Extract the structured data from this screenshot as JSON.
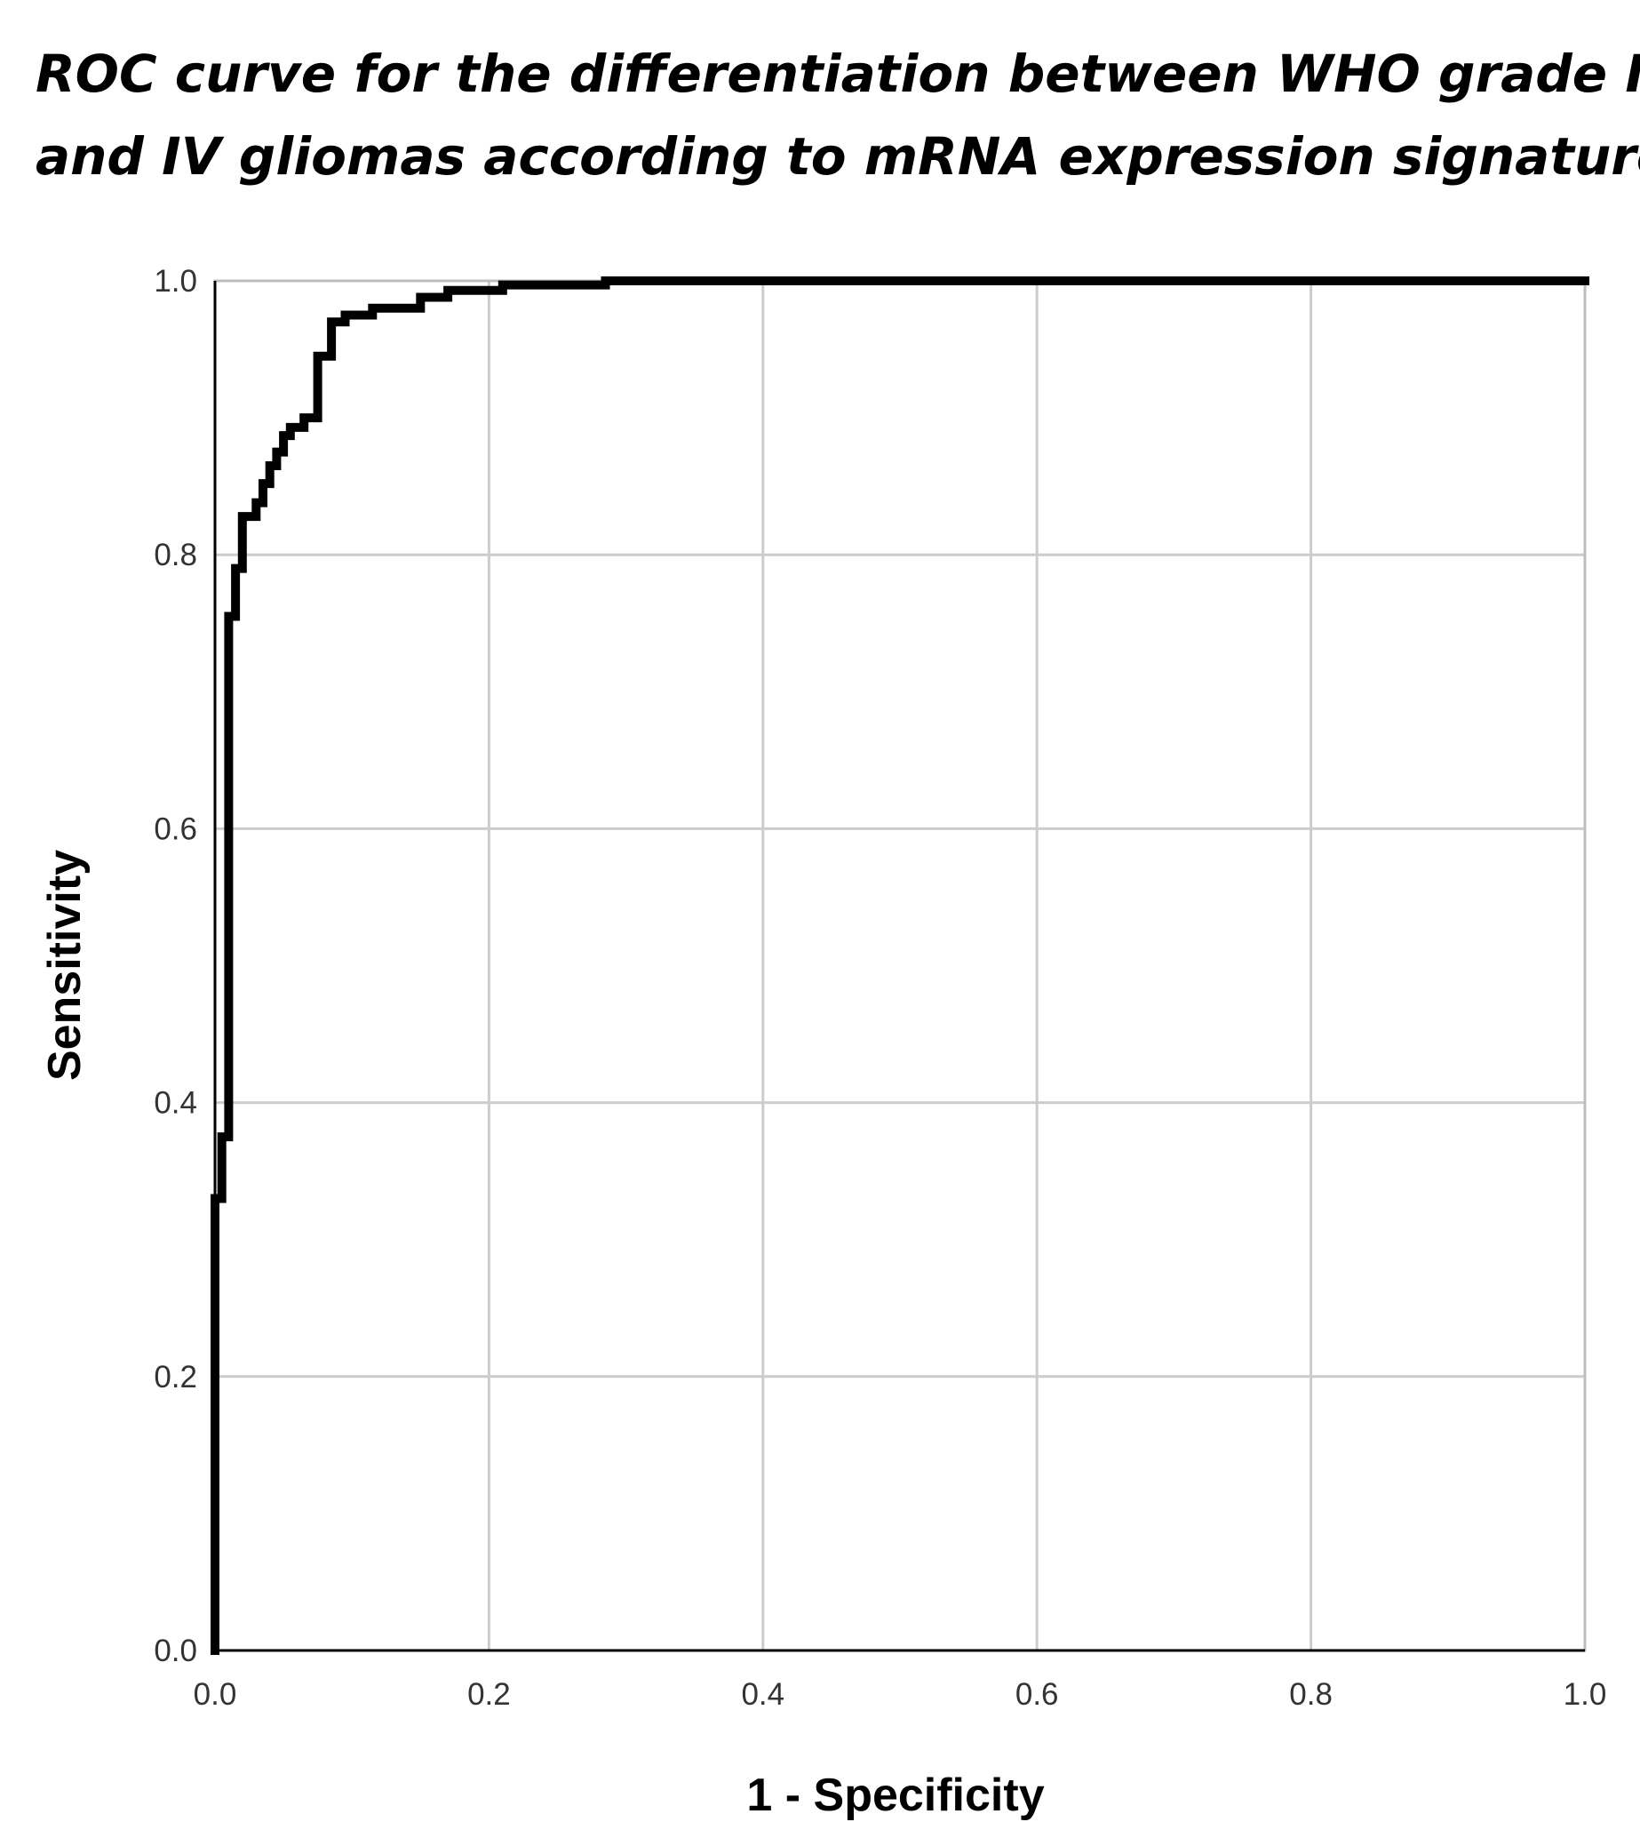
{
  "chart_data": {
    "type": "line",
    "title_lines": [
      "ROC curve for the differentiation between WHO grade II",
      "and IV gliomas according to mRNA expression signature"
    ],
    "xlabel": "1 - Specificity",
    "ylabel": "Sensitivity",
    "xlim": [
      0,
      1
    ],
    "ylim": [
      0,
      1
    ],
    "x_ticks": [
      "0.0",
      "0.2",
      "0.4",
      "0.6",
      "0.8",
      "1.0"
    ],
    "y_ticks": [
      "0.0",
      "0.2",
      "0.4",
      "0.6",
      "0.8",
      "1.0"
    ],
    "grid": true,
    "legend": "none",
    "series": [
      {
        "color": "#000000",
        "step": true,
        "x": [
          0.0,
          0.0,
          0.005,
          0.005,
          0.01,
          0.01,
          0.015,
          0.015,
          0.02,
          0.02,
          0.03,
          0.03,
          0.035,
          0.035,
          0.04,
          0.04,
          0.045,
          0.045,
          0.05,
          0.05,
          0.055,
          0.055,
          0.065,
          0.065,
          0.075,
          0.075,
          0.085,
          0.085,
          0.095,
          0.095,
          0.115,
          0.115,
          0.15,
          0.15,
          0.17,
          0.17,
          0.21,
          0.21,
          0.285,
          0.285,
          1.0
        ],
        "y": [
          0.0,
          0.33,
          0.33,
          0.375,
          0.375,
          0.755,
          0.755,
          0.79,
          0.79,
          0.828,
          0.828,
          0.838,
          0.838,
          0.852,
          0.852,
          0.865,
          0.865,
          0.875,
          0.875,
          0.887,
          0.887,
          0.893,
          0.893,
          0.9,
          0.9,
          0.945,
          0.945,
          0.97,
          0.97,
          0.975,
          0.975,
          0.98,
          0.98,
          0.988,
          0.988,
          0.993,
          0.993,
          0.997,
          0.997,
          1.0,
          1.0
        ]
      }
    ]
  }
}
